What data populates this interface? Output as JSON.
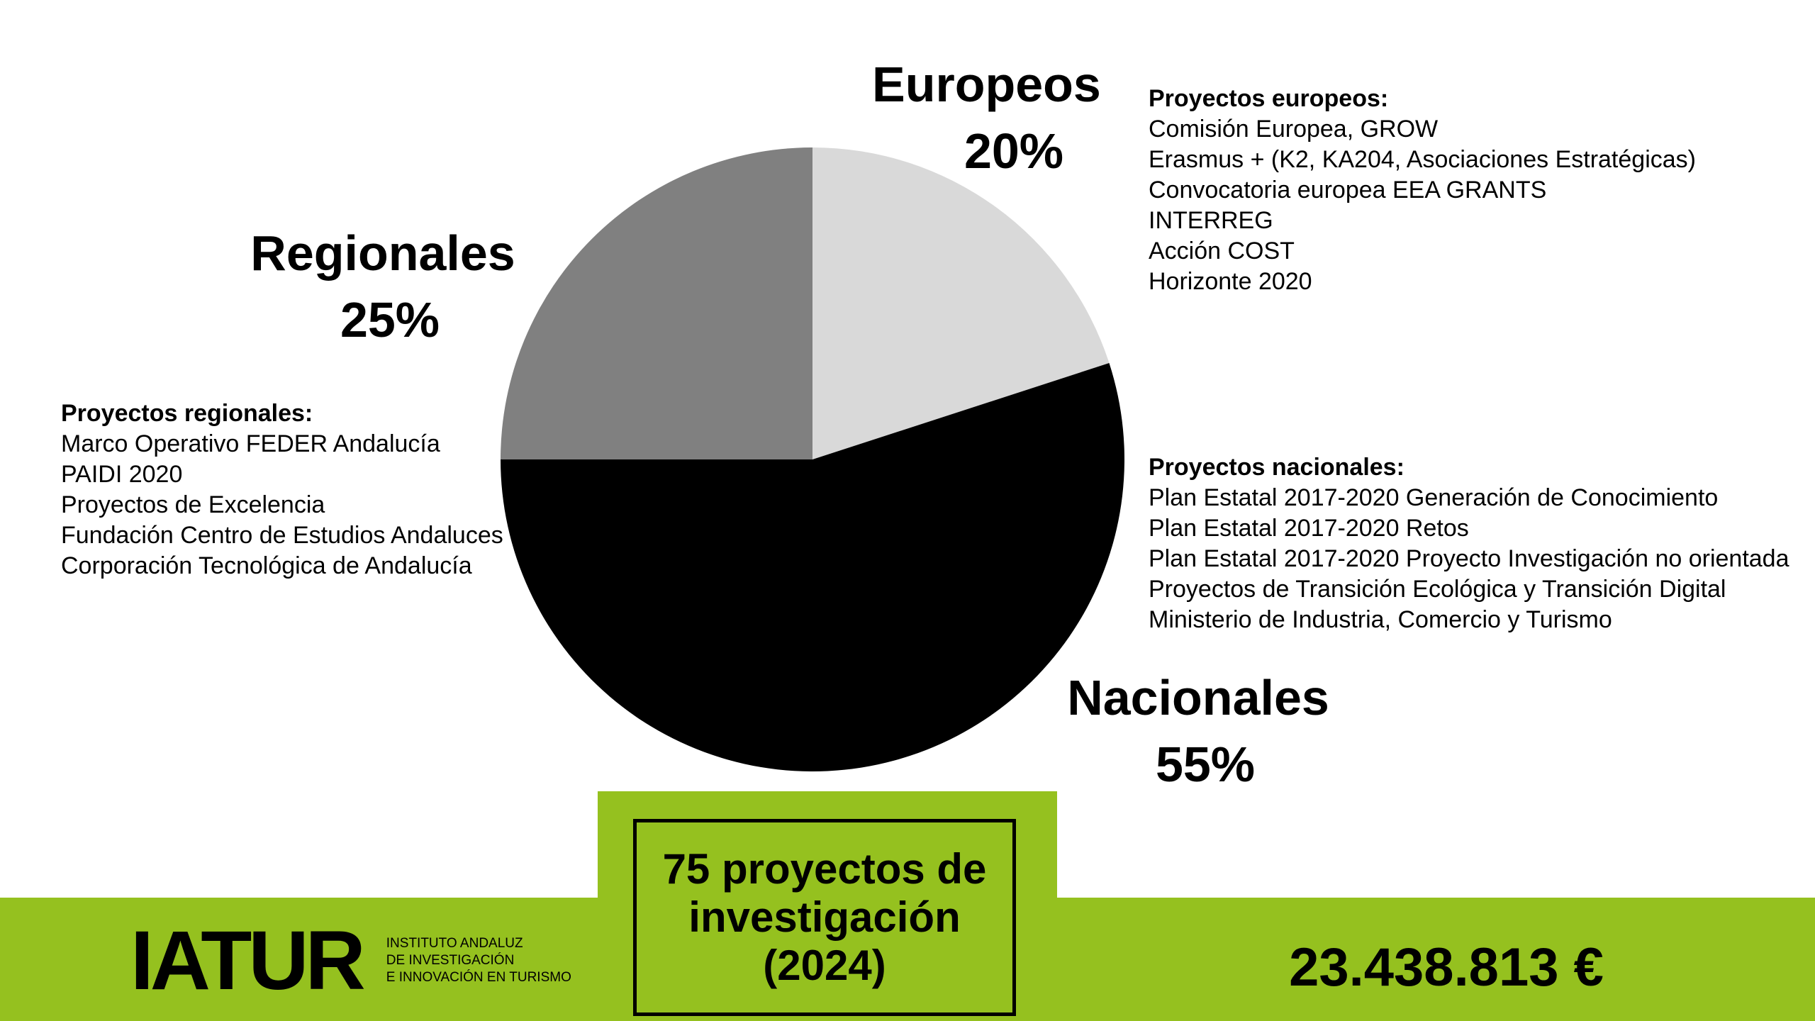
{
  "chart_data": {
    "type": "pie",
    "slices": [
      {
        "label": "Europeos",
        "value": 20,
        "value_label": "20%",
        "color": "#d9d9d9"
      },
      {
        "label": "Nacionales",
        "value": 55,
        "value_label": "55%",
        "color": "#000000"
      },
      {
        "label": "Regionales",
        "value": 25,
        "value_label": "25%",
        "color": "#808080"
      }
    ],
    "start_angle": "12 o'clock, clockwise"
  },
  "info": {
    "europeos": {
      "title": "Proyectos europeos:",
      "items": [
        "Comisión Europea, GROW",
        "Erasmus + (K2, KA204, Asociaciones Estratégicas)",
        "Convocatoria europea EEA GRANTS",
        "INTERREG",
        "Acción COST",
        "Horizonte 2020"
      ]
    },
    "regionales": {
      "title": "Proyectos regionales:",
      "items": [
        "Marco Operativo FEDER Andalucía",
        "PAIDI 2020",
        "Proyectos de Excelencia",
        "Fundación Centro de Estudios Andaluces",
        "Corporación Tecnológica de Andalucía"
      ]
    },
    "nacionales": {
      "title": "Proyectos nacionales:",
      "items": [
        "Plan Estatal 2017-2020 Generación de Conocimiento",
        "Plan Estatal 2017-2020 Retos",
        "Plan Estatal 2017-2020 Proyecto Investigación no orientada",
        "Proyectos de Transición Ecológica y Transición Digital",
        "Ministerio de Industria, Comercio y Turismo"
      ]
    }
  },
  "footer": {
    "project_count": {
      "line1": "75 proyectos de",
      "line2": "investigación",
      "line3": "(2024)"
    },
    "total_amount": "23.438.813 €",
    "logo": {
      "mark": "IATUR",
      "line1": "INSTITUTO ANDALUZ",
      "line2": "DE INVESTIGACIÓN",
      "line3": "E INNOVACIÓN EN TURISMO"
    },
    "accent_color": "#95c11f"
  }
}
